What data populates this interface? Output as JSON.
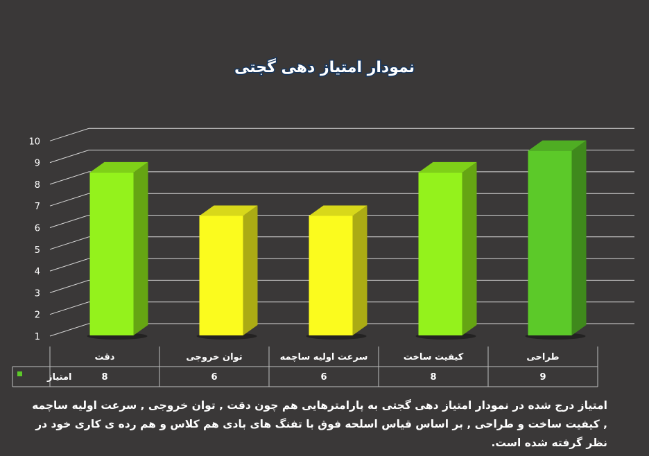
{
  "chart_data": {
    "type": "bar",
    "title": "نمودار امتیاز دهی گجتی",
    "categories": [
      "دقت",
      "توان خروجی",
      "سرعت اولیه ساچمه",
      "کیفیت ساخت",
      "طراحی"
    ],
    "series": [
      {
        "name": "امتیاز",
        "values": [
          8,
          6,
          6,
          8,
          9
        ]
      }
    ],
    "ylim": [
      1,
      10
    ],
    "yticks": [
      1,
      2,
      3,
      4,
      5,
      6,
      7,
      8,
      9,
      10
    ],
    "grid": true,
    "legend": "data-table-left",
    "bar_colors": [
      "#94f21c",
      "#fbfb1e",
      "#fbfb1e",
      "#94f21c",
      "#5cc929"
    ]
  },
  "caption": "امتیاز درج شده در نمودار امتیاز دهی گجتی  به پارامترهایی هم چون دقت , توان خروجی , سرعت اولیه ساچمه , کیفیت ساخت و طراحی , بر اساس قیاس اسلحه فوق با تفنگ های بادی هم کلاس و هم رده ی کاری خود در نظر گرفته شده است.",
  "colors": {
    "background": "#3a3838",
    "grid": "#d9d9d9",
    "text": "#ffffff",
    "title": "#17365d",
    "legend_marker": "#5cc929"
  }
}
